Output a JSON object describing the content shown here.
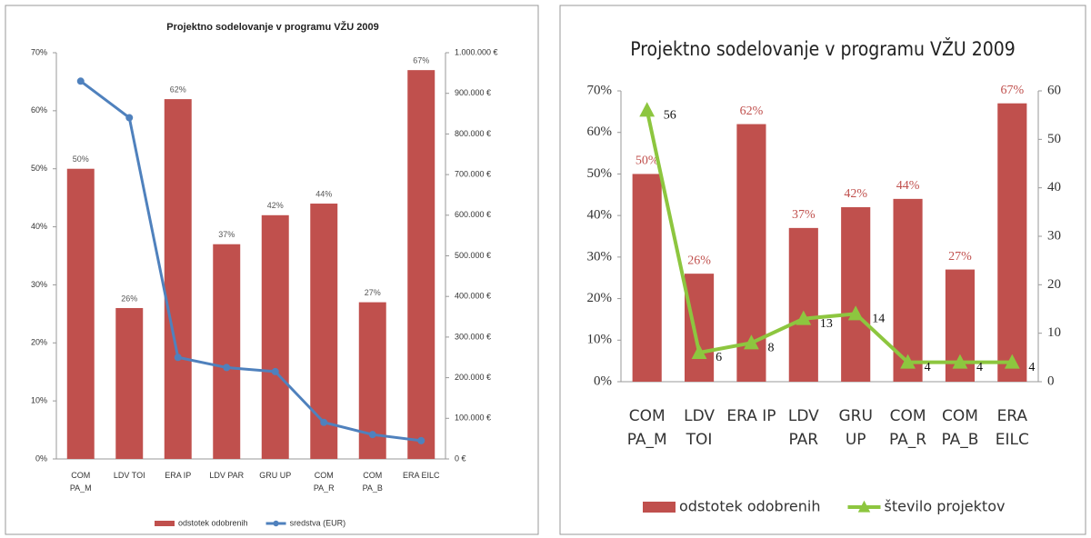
{
  "chart_data": [
    {
      "type": "bar",
      "title": "Projektno sodelovanje v programu VŽU 2009",
      "categories": [
        "COM\nPA_M",
        "LDV TOI",
        "ERA IP",
        "LDV PAR",
        "GRU UP",
        "COM\nPA_R",
        "COM\nPA_B",
        "ERA EILC"
      ],
      "series": [
        {
          "name": "odstotek odobrenih",
          "type": "bar",
          "color": "#c0504d",
          "values": [
            50,
            26,
            62,
            37,
            42,
            44,
            27,
            67
          ],
          "value_labels": [
            "50%",
            "26%",
            "62%",
            "37%",
            "42%",
            "44%",
            "27%",
            "67%"
          ],
          "value_label_color": "#555555"
        },
        {
          "name": "sredstva (EUR)",
          "type": "line",
          "axis": "y2",
          "color": "#4f81bd",
          "marker": "circle",
          "values": [
            930000,
            840000,
            250000,
            225000,
            215000,
            90000,
            60000,
            45000
          ]
        }
      ],
      "ylim": [
        0,
        70
      ],
      "yticks": [
        {
          "value": 0,
          "label": "0%"
        },
        {
          "value": 10,
          "label": "10%"
        },
        {
          "value": 20,
          "label": "20%"
        },
        {
          "value": 30,
          "label": "30%"
        },
        {
          "value": 40,
          "label": "40%"
        },
        {
          "value": 50,
          "label": "50%"
        },
        {
          "value": 60,
          "label": "60%"
        },
        {
          "value": 70,
          "label": "70%"
        }
      ],
      "y2lim": [
        0,
        1000000
      ],
      "y2ticks": [
        {
          "value": 0,
          "label": "0 €"
        },
        {
          "value": 100000,
          "label": "100.000 €"
        },
        {
          "value": 200000,
          "label": "200.000 €"
        },
        {
          "value": 300000,
          "label": "300.000 €"
        },
        {
          "value": 400000,
          "label": "400.000 €"
        },
        {
          "value": 500000,
          "label": "500.000 €"
        },
        {
          "value": 600000,
          "label": "600.000 €"
        },
        {
          "value": 700000,
          "label": "700.000 €"
        },
        {
          "value": 800000,
          "label": "800.000 €"
        },
        {
          "value": 900000,
          "label": "900.000 €"
        },
        {
          "value": 1000000,
          "label": "1.000.000 €"
        }
      ],
      "legend": "bottom"
    },
    {
      "type": "bar",
      "title": "Projektno sodelovanje v programu VŽU 2009",
      "categories": [
        "COM\nPA_M",
        "LDV\nTOI",
        "ERA IP",
        "LDV\nPAR",
        "GRU\nUP",
        "COM\nPA_R",
        "COM\nPA_B",
        "ERA\nEILC"
      ],
      "series": [
        {
          "name": "odstotek odobrenih",
          "type": "bar",
          "color": "#c0504d",
          "values": [
            50,
            26,
            62,
            37,
            42,
            44,
            27,
            67
          ],
          "value_labels": [
            "50%",
            "26%",
            "62%",
            "37%",
            "42%",
            "44%",
            "27%",
            "67%"
          ],
          "value_label_color": "#c0504d"
        },
        {
          "name": "število projektov",
          "type": "line",
          "axis": "y2",
          "color": "#8dc63f",
          "marker": "triangle",
          "data_labels": true,
          "values": [
            56,
            6,
            8,
            13,
            14,
            4,
            4,
            4
          ]
        }
      ],
      "ylim": [
        0,
        70
      ],
      "yticks": [
        {
          "value": 0,
          "label": "0%"
        },
        {
          "value": 10,
          "label": "10%"
        },
        {
          "value": 20,
          "label": "20%"
        },
        {
          "value": 30,
          "label": "30%"
        },
        {
          "value": 40,
          "label": "40%"
        },
        {
          "value": 50,
          "label": "50%"
        },
        {
          "value": 60,
          "label": "60%"
        },
        {
          "value": 70,
          "label": "70%"
        }
      ],
      "y2lim": [
        0,
        60
      ],
      "y2ticks": [
        0,
        10,
        20,
        30,
        40,
        50,
        60
      ],
      "legend": "bottom"
    }
  ]
}
